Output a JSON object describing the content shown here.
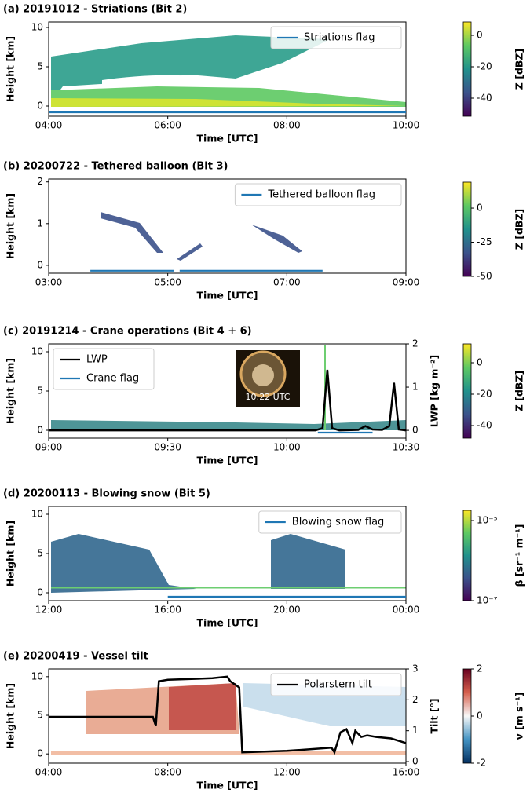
{
  "chart_data": [
    {
      "type": "line",
      "title": "(a) 20191012 - Striations (Bit 2)",
      "xlabel": "Time [UTC]",
      "ylabel": "Height [km]",
      "xlim": [
        4,
        10
      ],
      "xticks": [
        {
          "value": 4,
          "label": "04:00"
        },
        {
          "value": 6,
          "label": "06:00"
        },
        {
          "value": 8,
          "label": "08:00"
        },
        {
          "value": 10,
          "label": "10:00"
        }
      ],
      "ylim": [
        -1.3,
        10.7
      ],
      "yticks": [
        0,
        5,
        10
      ],
      "legend": "upper right",
      "series": [
        {
          "name": "Striations flag",
          "color": "#1f77b4",
          "x": [
            4,
            10
          ],
          "values": [
            -0.8,
            -0.8
          ]
        }
      ],
      "colorbar": {
        "label": "Z [dBZ]",
        "colormap": "viridis",
        "clim": [
          -51.5,
          8.5
        ],
        "ticks": [
          0,
          -20,
          -40
        ]
      }
    },
    {
      "type": "line",
      "title": "(b) 20200722 - Tethered balloon (Bit 3)",
      "xlabel": "Time [UTC]",
      "ylabel": "Height [km]",
      "xlim": [
        3,
        9
      ],
      "xticks": [
        {
          "value": 3,
          "label": "03:00"
        },
        {
          "value": 5,
          "label": "05:00"
        },
        {
          "value": 7,
          "label": "07:00"
        },
        {
          "value": 9,
          "label": "09:00"
        }
      ],
      "ylim": [
        -0.19,
        2.07
      ],
      "yticks": [
        0,
        1,
        2
      ],
      "legend": "upper right",
      "series": [
        {
          "name": "Tethered balloon flag",
          "color": "#1f77b4",
          "x": [
            3.7,
            5.1,
            5.15,
            5.2,
            7.6
          ],
          "values": [
            -0.13,
            -0.13,
            null,
            -0.13,
            -0.13
          ]
        }
      ],
      "colorbar": {
        "label": "Z [dBZ]",
        "colormap": "viridis",
        "clim": [
          -50,
          19
        ],
        "ticks": [
          0,
          -25,
          -50
        ]
      }
    },
    {
      "type": "line",
      "title": "(c) 20191214 - Crane operations  (Bit 4 + 6)",
      "xlabel": "Time [UTC]",
      "ylabel": "Height [km]",
      "y2label": "LWP [kg m⁻²]",
      "xlim": [
        9,
        10.5
      ],
      "xticks": [
        {
          "value": 9,
          "label": "09:00"
        },
        {
          "value": 9.5,
          "label": "09:30"
        },
        {
          "value": 10,
          "label": "10:00"
        },
        {
          "value": 10.5,
          "label": "10:30"
        }
      ],
      "ylim": [
        -1,
        11
      ],
      "yticks": [
        0,
        5,
        10
      ],
      "y2lim": [
        -0.18,
        2
      ],
      "y2ticks": [
        0,
        1,
        2
      ],
      "legend": "upper left",
      "annotation": "10:22 UTC",
      "series": [
        {
          "name": "LWP",
          "color": "#000000",
          "axis": "y2",
          "x": [
            9,
            10.12,
            10.15,
            10.17,
            10.19,
            10.22,
            10.3,
            10.33,
            10.36,
            10.4,
            10.43,
            10.45,
            10.47,
            10.5
          ],
          "values": [
            0,
            0,
            0.05,
            1.4,
            0.05,
            0,
            0.01,
            0.1,
            0.02,
            0.01,
            0.1,
            1.1,
            0.02,
            0
          ]
        },
        {
          "name": "Crane flag",
          "color": "#1f77b4",
          "x": [
            10.13,
            10.36
          ],
          "values": [
            -0.3,
            -0.3
          ]
        }
      ],
      "colorbar": {
        "label": "Z [dBZ]",
        "colormap": "viridis",
        "clim": [
          -48,
          12
        ],
        "ticks": [
          0,
          -20,
          -40
        ]
      }
    },
    {
      "type": "line",
      "title": "(d) 20200113 - Blowing snow  (Bit 5)",
      "xlabel": "Time [UTC]",
      "ylabel": "Height [km]",
      "xlim": [
        12,
        24
      ],
      "xticks": [
        {
          "value": 12,
          "label": "12:00"
        },
        {
          "value": 16,
          "label": "16:00"
        },
        {
          "value": 20,
          "label": "20:00"
        },
        {
          "value": 24,
          "label": "00:00"
        }
      ],
      "ylim": [
        -1,
        11
      ],
      "yticks": [
        0,
        5,
        10
      ],
      "legend": "upper right",
      "series": [
        {
          "name": "Blowing snow flag",
          "color": "#1f77b4",
          "x": [
            16,
            24
          ],
          "values": [
            -0.5,
            -0.5
          ]
        }
      ],
      "colorbar": {
        "label": "β [sr⁻¹ m⁻¹]",
        "colormap": "viridis",
        "log": true,
        "clim": [
          1e-07,
          1.8e-05
        ],
        "ticks": [
          {
            "value": 1e-05,
            "label": "10⁻⁵"
          },
          {
            "value": 1e-07,
            "label": "10⁻⁷"
          }
        ]
      }
    },
    {
      "type": "line",
      "title": "(e) 20200419 - Vessel tilt",
      "xlabel": "Time [UTC]",
      "ylabel": "Height [km]",
      "y2label": "Tilt [°]",
      "xlim": [
        4,
        16
      ],
      "xticks": [
        {
          "value": 4,
          "label": "04:00"
        },
        {
          "value": 8,
          "label": "08:00"
        },
        {
          "value": 12,
          "label": "12:00"
        },
        {
          "value": 16,
          "label": "16:00"
        }
      ],
      "ylim": [
        -1.2,
        11
      ],
      "yticks": [
        0,
        5,
        10
      ],
      "y2lim": [
        -0.05,
        3
      ],
      "y2ticks": [
        0,
        1,
        2,
        3
      ],
      "legend": "upper right",
      "series": [
        {
          "name": "Polarstern tilt",
          "color": "#000000",
          "axis": "y2",
          "x": [
            4,
            7.5,
            7.6,
            7.7,
            8.0,
            9.5,
            10.0,
            10.1,
            10.4,
            10.5,
            12,
            13.5,
            13.6,
            13.8,
            14.0,
            14.2,
            14.3,
            14.5,
            14.7,
            15.0,
            15.5,
            16
          ],
          "values": [
            1.45,
            1.45,
            1.15,
            2.6,
            2.65,
            2.7,
            2.75,
            2.6,
            2.4,
            0.3,
            0.35,
            0.45,
            0.3,
            0.95,
            1.05,
            0.6,
            1.0,
            0.8,
            0.85,
            0.8,
            0.75,
            0.6
          ]
        }
      ],
      "colorbar": {
        "label": "v [m s⁻¹]",
        "colormap": "RdBu",
        "clim": [
          -2,
          2
        ],
        "ticks": [
          2,
          0,
          -2
        ]
      }
    }
  ]
}
